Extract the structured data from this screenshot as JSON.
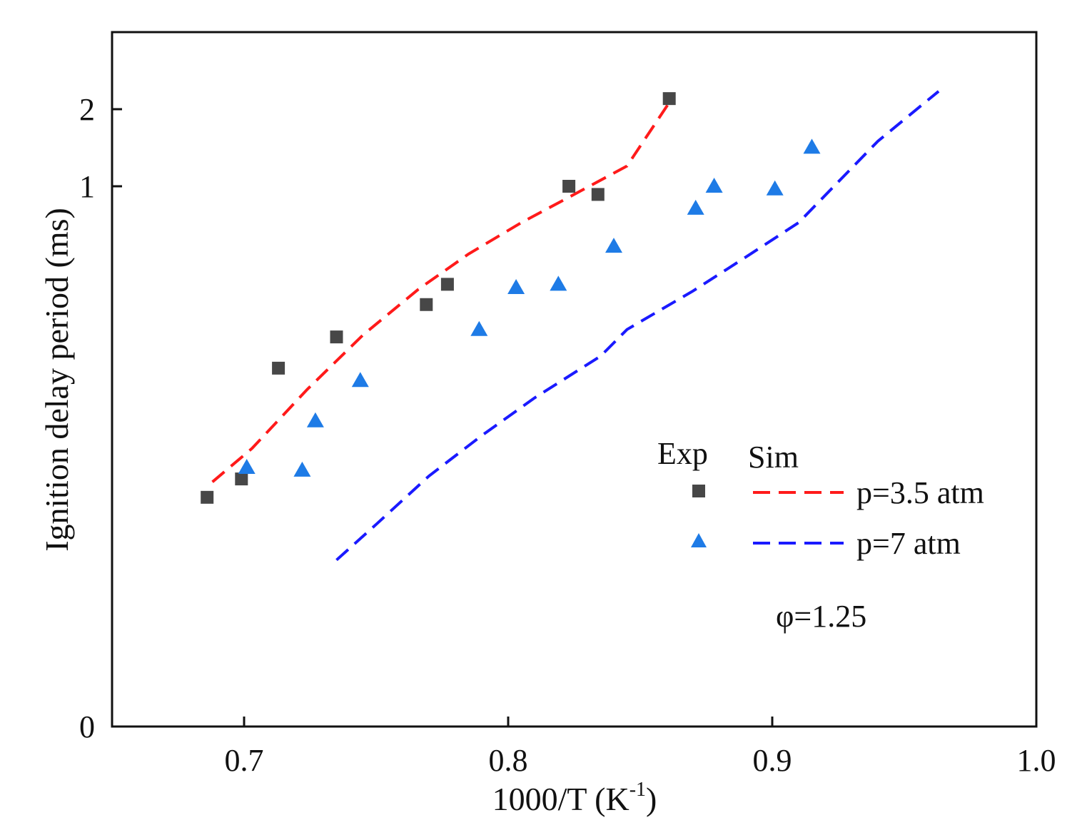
{
  "chart_data": {
    "type": "scatter",
    "title": "",
    "xlabel": "1000/T (K",
    "xlabel_sup": "-1",
    "xlabel_close": ")",
    "ylabel": "Ignition delay period (ms)",
    "xlim": [
      0.65,
      1.0
    ],
    "y_ticks": [
      {
        "value": 0,
        "label": "0"
      },
      {
        "value": 1,
        "label": "1"
      },
      {
        "value": 2,
        "label": "2"
      }
    ],
    "x_ticks": [
      {
        "value": 0.7,
        "label": "0.7"
      },
      {
        "value": 0.8,
        "label": "0.8"
      },
      {
        "value": 0.9,
        "label": "0.9"
      },
      {
        "value": 1.0,
        "label": "1.0"
      }
    ],
    "legend": {
      "exp_header": "Exp",
      "sim_header": "Sim",
      "annotation": "φ=1.25",
      "entries": [
        {
          "label": "p=3.5 atm",
          "marker": "square",
          "marker_color": "#474747",
          "line_color": "#ff1a1a"
        },
        {
          "label": "p=7 atm",
          "marker": "triangle",
          "marker_color": "#1e7be6",
          "line_color": "#1a1aff"
        }
      ]
    },
    "series": [
      {
        "name": "Exp p=3.5 atm",
        "kind": "markers",
        "marker": "square",
        "color": "#474747",
        "points": [
          [
            0.686,
            0.18
          ],
          [
            0.699,
            0.21
          ],
          [
            0.713,
            0.44
          ],
          [
            0.735,
            0.52
          ],
          [
            0.769,
            0.61
          ],
          [
            0.777,
            0.67
          ],
          [
            0.823,
            1.0
          ],
          [
            0.834,
            0.97
          ],
          [
            0.861,
            2.2
          ]
        ]
      },
      {
        "name": "Exp p=7 atm",
        "kind": "markers",
        "marker": "triangle",
        "color": "#1e7be6",
        "points": [
          [
            0.701,
            0.23
          ],
          [
            0.722,
            0.225
          ],
          [
            0.727,
            0.32
          ],
          [
            0.744,
            0.41
          ],
          [
            0.789,
            0.54
          ],
          [
            0.803,
            0.66
          ],
          [
            0.819,
            0.67
          ],
          [
            0.84,
            0.79
          ],
          [
            0.871,
            0.92
          ],
          [
            0.878,
            1.0
          ],
          [
            0.901,
            0.99
          ],
          [
            0.915,
            1.42
          ]
        ]
      },
      {
        "name": "Sim p=3.5 atm",
        "kind": "line",
        "dash": "dashed",
        "color": "#ff1a1a",
        "points": [
          [
            0.688,
            0.205
          ],
          [
            0.703,
            0.265
          ],
          [
            0.724,
            0.39
          ],
          [
            0.745,
            0.525
          ],
          [
            0.766,
            0.655
          ],
          [
            0.785,
            0.765
          ],
          [
            0.805,
            0.87
          ],
          [
            0.825,
            0.97
          ],
          [
            0.845,
            1.2
          ],
          [
            0.862,
            2.2
          ]
        ]
      },
      {
        "name": "Sim p=7 atm",
        "kind": "line",
        "dash": "dashed",
        "color": "#1a1aff",
        "points": [
          [
            0.735,
            0.095
          ],
          [
            0.75,
            0.14
          ],
          [
            0.77,
            0.215
          ],
          [
            0.79,
            0.29
          ],
          [
            0.81,
            0.37
          ],
          [
            0.835,
            0.47
          ],
          [
            0.845,
            0.54
          ],
          [
            0.87,
            0.65
          ],
          [
            0.89,
            0.755
          ],
          [
            0.91,
            0.87
          ],
          [
            0.94,
            1.5
          ],
          [
            0.963,
            2.35
          ]
        ]
      }
    ]
  }
}
